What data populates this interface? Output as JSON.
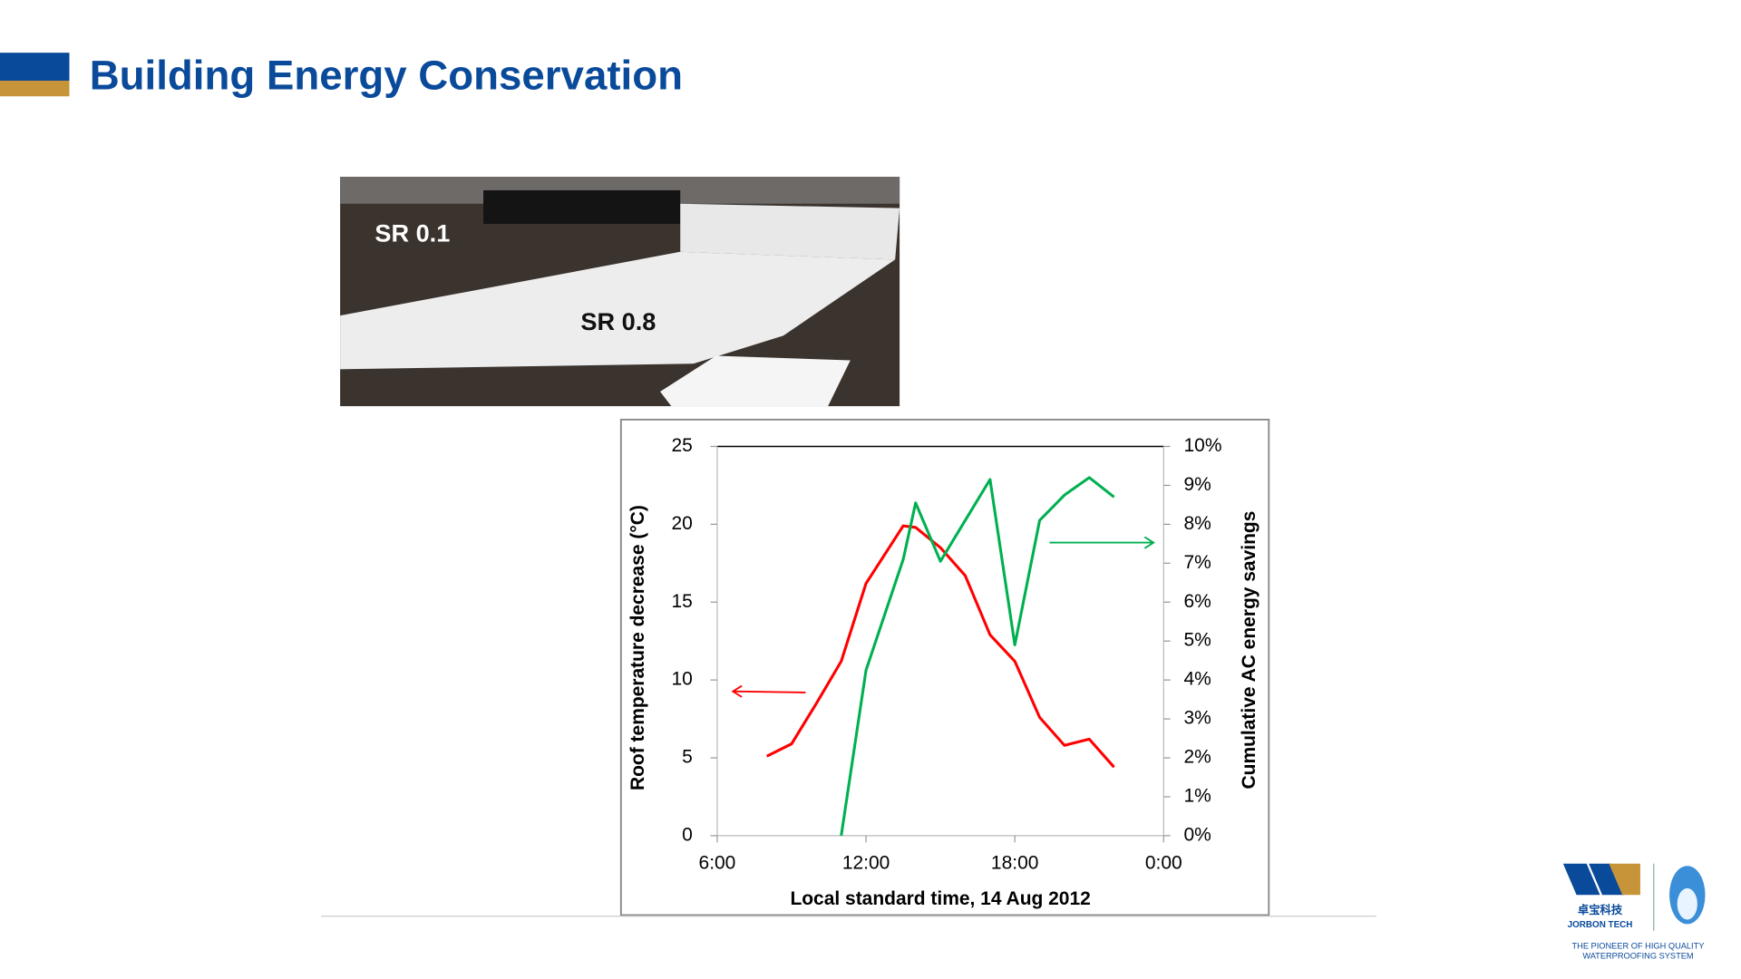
{
  "header": {
    "title": "Building Energy Conservation"
  },
  "photo": {
    "labels": [
      "SR 0.1",
      "SR 0.8"
    ]
  },
  "logo": {
    "name_cn": "卓宝科技",
    "name_en": "JORBON TECH",
    "slogan": [
      "THE PIONEER OF HIGH QUALITY",
      "WATERPROOFING SYSTEM"
    ]
  },
  "chart_data": {
    "type": "line",
    "xlabel": "Local standard time, 14 Aug 2012",
    "ylabel": "Roof temperature decrease (°C)",
    "y2label": "Cumulative AC energy savings",
    "x": [
      8,
      9,
      10,
      11,
      12,
      13.5,
      14,
      15,
      16,
      17,
      18,
      19,
      20,
      21,
      22
    ],
    "xlim": [
      6,
      24
    ],
    "xticks": [
      {
        "value": 6,
        "label": "6:00"
      },
      {
        "value": 12,
        "label": "12:00"
      },
      {
        "value": 18,
        "label": "18:00"
      },
      {
        "value": 24,
        "label": "0:00"
      }
    ],
    "ylim": [
      0,
      25
    ],
    "yticks": [
      0,
      5,
      10,
      15,
      20,
      25
    ],
    "y2lim": [
      0,
      10
    ],
    "y2ticks": [
      {
        "value": 0,
        "label": "0%"
      },
      {
        "value": 1,
        "label": "1%"
      },
      {
        "value": 2,
        "label": "2%"
      },
      {
        "value": 3,
        "label": "3%"
      },
      {
        "value": 4,
        "label": "4%"
      },
      {
        "value": 5,
        "label": "5%"
      },
      {
        "value": 6,
        "label": "6%"
      },
      {
        "value": 7,
        "label": "7%"
      },
      {
        "value": 8,
        "label": "8%"
      },
      {
        "value": 9,
        "label": "9%"
      },
      {
        "value": 10,
        "label": "10%"
      }
    ],
    "series": [
      {
        "color": "#ff0000",
        "values": [
          5.1,
          5.9,
          8.5,
          11.2,
          16.2,
          19.9,
          19.8,
          18.5,
          16.7,
          12.9,
          11.2,
          7.6,
          5.8,
          6.2,
          4.4
        ]
      },
      {
        "color": "#00b050",
        "axis": "y2",
        "values": [
          null,
          null,
          null,
          0,
          4.25,
          7.1,
          8.55,
          7.05,
          8.1,
          9.15,
          4.9,
          8.1,
          8.75,
          9.2,
          8.7
        ]
      }
    ]
  }
}
